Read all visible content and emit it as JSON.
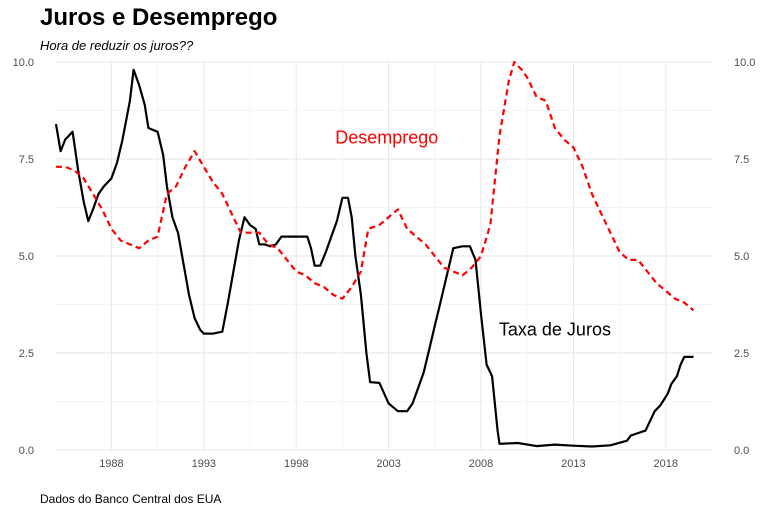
{
  "title": "Juros e Desemprego",
  "subtitle": "Hora de reduzir os juros??",
  "caption": "Dados do Banco Central dos EUA",
  "chart_data": {
    "type": "line",
    "xlim": [
      1985.0,
      2020.5
    ],
    "ylim": [
      0,
      10.0
    ],
    "x_ticks": [
      1988,
      1993,
      1998,
      2003,
      2008,
      2013,
      2018
    ],
    "x_tick_labels": [
      "1988",
      "1993",
      "1998",
      "2003",
      "2008",
      "2013",
      "2018"
    ],
    "y_ticks": [
      0,
      2.5,
      5.0,
      7.5,
      10.0
    ],
    "y_tick_labels": [
      "0.0",
      "2.5",
      "5.0",
      "7.5",
      "10.0"
    ],
    "grid": true,
    "series": [
      {
        "name": "Taxa de Juros",
        "color": "#000000",
        "style": "solid",
        "label_x": 2012.0,
        "label_y": 2.95,
        "points": [
          [
            1985.0,
            8.4
          ],
          [
            1985.25,
            7.7
          ],
          [
            1985.5,
            8.0
          ],
          [
            1985.9,
            8.2
          ],
          [
            1986.2,
            7.2
          ],
          [
            1986.5,
            6.4
          ],
          [
            1986.75,
            5.9
          ],
          [
            1987.0,
            6.2
          ],
          [
            1987.3,
            6.6
          ],
          [
            1987.6,
            6.8
          ],
          [
            1988.0,
            7.0
          ],
          [
            1988.3,
            7.4
          ],
          [
            1988.6,
            8.0
          ],
          [
            1989.0,
            9.0
          ],
          [
            1989.2,
            9.8
          ],
          [
            1989.5,
            9.4
          ],
          [
            1989.8,
            8.9
          ],
          [
            1990.0,
            8.3
          ],
          [
            1990.5,
            8.2
          ],
          [
            1990.8,
            7.6
          ],
          [
            1991.0,
            6.8
          ],
          [
            1991.3,
            6.0
          ],
          [
            1991.6,
            5.6
          ],
          [
            1991.9,
            4.8
          ],
          [
            1992.2,
            4.0
          ],
          [
            1992.5,
            3.4
          ],
          [
            1992.8,
            3.1
          ],
          [
            1993.0,
            3.0
          ],
          [
            1993.5,
            3.0
          ],
          [
            1994.0,
            3.05
          ],
          [
            1994.3,
            3.8
          ],
          [
            1994.6,
            4.6
          ],
          [
            1994.9,
            5.4
          ],
          [
            1995.2,
            6.0
          ],
          [
            1995.5,
            5.8
          ],
          [
            1995.8,
            5.7
          ],
          [
            1996.0,
            5.3
          ],
          [
            1996.3,
            5.3
          ],
          [
            1996.6,
            5.25
          ],
          [
            1996.9,
            5.3
          ],
          [
            1997.2,
            5.5
          ],
          [
            1997.5,
            5.5
          ],
          [
            1997.8,
            5.5
          ],
          [
            1998.2,
            5.5
          ],
          [
            1998.6,
            5.5
          ],
          [
            1998.8,
            5.2
          ],
          [
            1999.0,
            4.75
          ],
          [
            1999.3,
            4.75
          ],
          [
            1999.6,
            5.1
          ],
          [
            1999.9,
            5.5
          ],
          [
            2000.2,
            5.9
          ],
          [
            2000.5,
            6.5
          ],
          [
            2000.8,
            6.5
          ],
          [
            2001.0,
            6.0
          ],
          [
            2001.2,
            5.0
          ],
          [
            2001.5,
            4.0
          ],
          [
            2001.8,
            2.5
          ],
          [
            2002.0,
            1.75
          ],
          [
            2002.5,
            1.73
          ],
          [
            2003.0,
            1.2
          ],
          [
            2003.5,
            1.0
          ],
          [
            2004.0,
            1.0
          ],
          [
            2004.3,
            1.2
          ],
          [
            2004.6,
            1.6
          ],
          [
            2004.9,
            2.0
          ],
          [
            2005.2,
            2.6
          ],
          [
            2005.5,
            3.2
          ],
          [
            2005.8,
            3.8
          ],
          [
            2006.1,
            4.4
          ],
          [
            2006.5,
            5.2
          ],
          [
            2007.0,
            5.25
          ],
          [
            2007.4,
            5.25
          ],
          [
            2007.7,
            4.9
          ],
          [
            2008.0,
            3.5
          ],
          [
            2008.3,
            2.2
          ],
          [
            2008.6,
            1.9
          ],
          [
            2008.9,
            0.5
          ],
          [
            2009.0,
            0.16
          ],
          [
            2010.0,
            0.18
          ],
          [
            2011.0,
            0.1
          ],
          [
            2012.0,
            0.14
          ],
          [
            2013.0,
            0.11
          ],
          [
            2014.0,
            0.09
          ],
          [
            2015.0,
            0.12
          ],
          [
            2015.9,
            0.24
          ],
          [
            2016.1,
            0.37
          ],
          [
            2016.9,
            0.5
          ],
          [
            2017.1,
            0.7
          ],
          [
            2017.4,
            1.0
          ],
          [
            2017.7,
            1.15
          ],
          [
            2017.9,
            1.3
          ],
          [
            2018.1,
            1.45
          ],
          [
            2018.3,
            1.7
          ],
          [
            2018.6,
            1.9
          ],
          [
            2018.8,
            2.2
          ],
          [
            2019.0,
            2.4
          ],
          [
            2019.5,
            2.4
          ]
        ]
      },
      {
        "name": "Desemprego",
        "color": "#ff0000",
        "style": "dashed",
        "label_x": 2002.9,
        "label_y": 7.9,
        "points": [
          [
            1985.0,
            7.3
          ],
          [
            1985.5,
            7.3
          ],
          [
            1986.0,
            7.2
          ],
          [
            1986.5,
            7.0
          ],
          [
            1987.0,
            6.6
          ],
          [
            1987.5,
            6.2
          ],
          [
            1988.0,
            5.7
          ],
          [
            1988.5,
            5.4
          ],
          [
            1989.0,
            5.3
          ],
          [
            1989.5,
            5.2
          ],
          [
            1990.0,
            5.4
          ],
          [
            1990.5,
            5.5
          ],
          [
            1991.0,
            6.6
          ],
          [
            1991.5,
            6.8
          ],
          [
            1992.0,
            7.3
          ],
          [
            1992.5,
            7.7
          ],
          [
            1993.0,
            7.3
          ],
          [
            1993.5,
            6.9
          ],
          [
            1994.0,
            6.6
          ],
          [
            1994.5,
            6.1
          ],
          [
            1995.0,
            5.6
          ],
          [
            1995.5,
            5.6
          ],
          [
            1996.0,
            5.6
          ],
          [
            1996.5,
            5.3
          ],
          [
            1997.0,
            5.2
          ],
          [
            1997.5,
            4.9
          ],
          [
            1998.0,
            4.6
          ],
          [
            1998.5,
            4.5
          ],
          [
            1999.0,
            4.3
          ],
          [
            1999.5,
            4.2
          ],
          [
            2000.0,
            4.0
          ],
          [
            2000.5,
            3.9
          ],
          [
            2001.0,
            4.2
          ],
          [
            2001.5,
            4.6
          ],
          [
            2001.9,
            5.7
          ],
          [
            2002.5,
            5.8
          ],
          [
            2003.0,
            6.0
          ],
          [
            2003.5,
            6.2
          ],
          [
            2004.0,
            5.7
          ],
          [
            2004.5,
            5.5
          ],
          [
            2005.0,
            5.3
          ],
          [
            2005.5,
            5.0
          ],
          [
            2006.0,
            4.7
          ],
          [
            2006.5,
            4.6
          ],
          [
            2007.0,
            4.5
          ],
          [
            2007.5,
            4.7
          ],
          [
            2008.0,
            5.0
          ],
          [
            2008.5,
            5.8
          ],
          [
            2009.0,
            8.1
          ],
          [
            2009.5,
            9.5
          ],
          [
            2009.8,
            10.0
          ],
          [
            2010.2,
            9.8
          ],
          [
            2010.5,
            9.6
          ],
          [
            2011.0,
            9.1
          ],
          [
            2011.5,
            9.0
          ],
          [
            2012.0,
            8.3
          ],
          [
            2012.5,
            8.0
          ],
          [
            2013.0,
            7.8
          ],
          [
            2013.5,
            7.3
          ],
          [
            2014.0,
            6.6
          ],
          [
            2014.5,
            6.1
          ],
          [
            2015.0,
            5.6
          ],
          [
            2015.5,
            5.1
          ],
          [
            2016.0,
            4.9
          ],
          [
            2016.5,
            4.9
          ],
          [
            2017.0,
            4.6
          ],
          [
            2017.5,
            4.3
          ],
          [
            2018.0,
            4.1
          ],
          [
            2018.5,
            3.9
          ],
          [
            2019.0,
            3.8
          ],
          [
            2019.5,
            3.6
          ]
        ]
      }
    ]
  }
}
